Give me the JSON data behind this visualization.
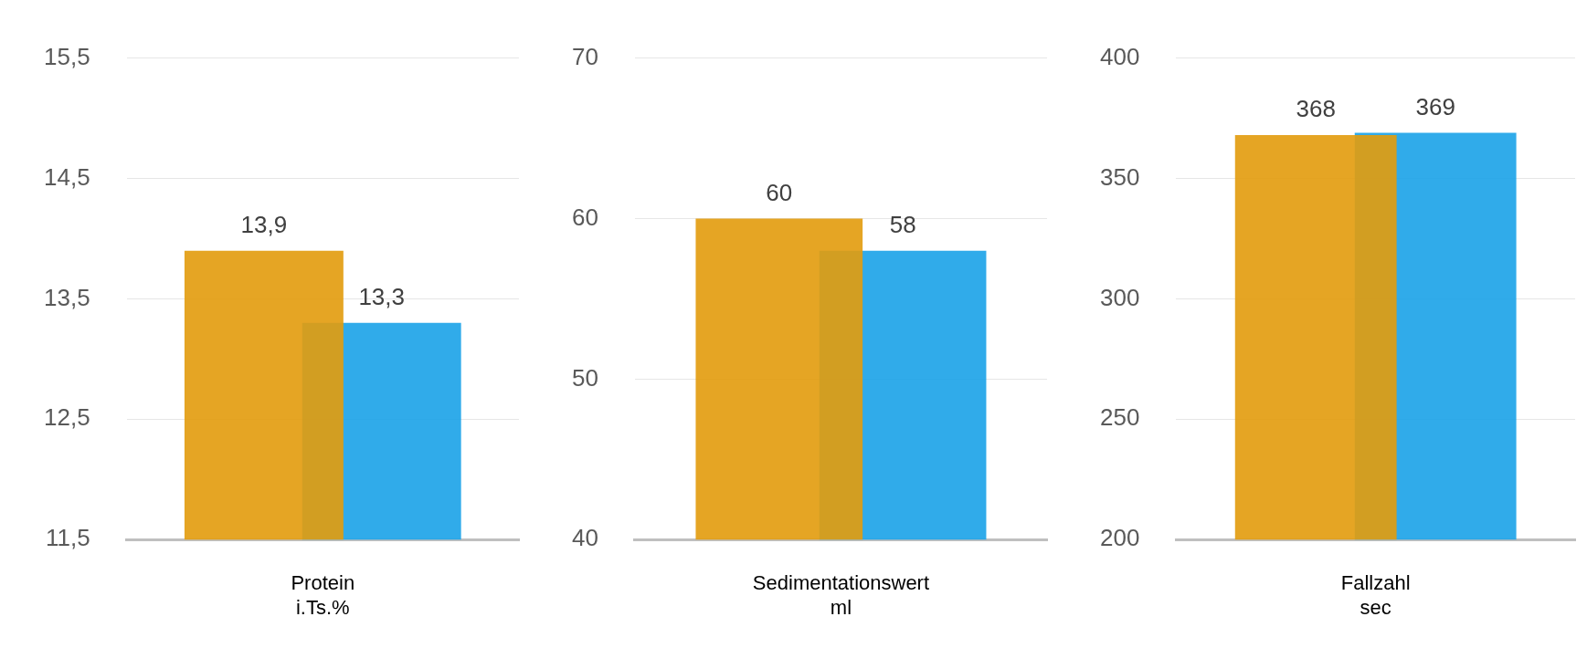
{
  "chart_data": [
    {
      "type": "bar",
      "categories": [
        "Protein\ni.Ts.%"
      ],
      "ylim": [
        11.5,
        15.5
      ],
      "yticks": [
        {
          "value": 11.5,
          "label": "11,5"
        },
        {
          "value": 12.5,
          "label": "12,5"
        },
        {
          "value": 13.5,
          "label": "13,5"
        },
        {
          "value": 14.5,
          "label": "14,5"
        },
        {
          "value": 15.5,
          "label": "15,5"
        }
      ],
      "grid": "y",
      "series": [
        {
          "color": "#e29c0e",
          "values": [
            13.9
          ],
          "value_labels": [
            "13,9"
          ]
        },
        {
          "color": "#1ba3e8",
          "values": [
            13.3
          ],
          "value_labels": [
            "13,3"
          ]
        }
      ]
    },
    {
      "type": "bar",
      "categories": [
        "Sedimentationswert\nml"
      ],
      "ylim": [
        40,
        70
      ],
      "yticks": [
        40,
        50,
        60,
        70
      ],
      "grid": "y",
      "data_labels": true,
      "series": [
        {
          "color": "#e29c0e",
          "values": [
            60
          ]
        },
        {
          "color": "#1ba3e8",
          "values": [
            58
          ]
        }
      ]
    },
    {
      "type": "bar",
      "categories": [
        "Fallzahl\nsec"
      ],
      "ylim": [
        200,
        400
      ],
      "yticks": [
        200,
        250,
        300,
        350,
        400
      ],
      "grid": "y",
      "data_labels": true,
      "series": [
        {
          "color": "#e29c0e",
          "values": [
            368
          ]
        },
        {
          "color": "#1ba3e8",
          "values": [
            369
          ]
        }
      ]
    }
  ]
}
